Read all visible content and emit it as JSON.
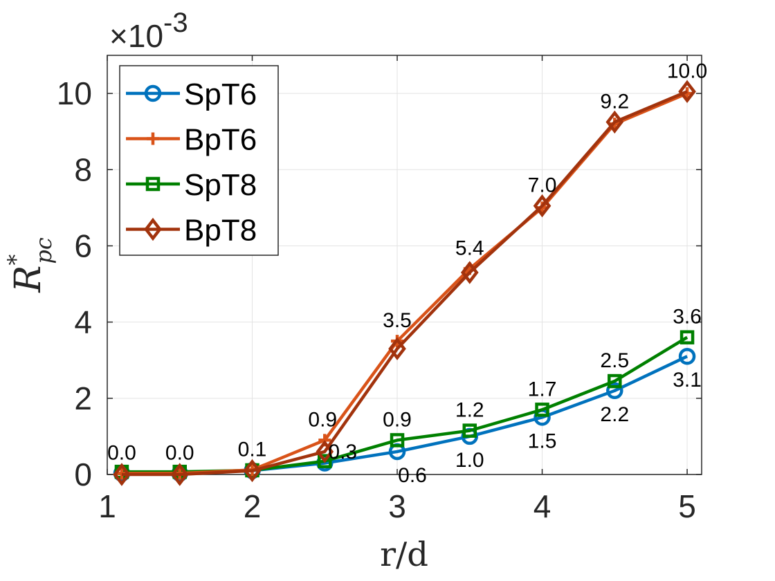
{
  "chart_data": {
    "type": "line",
    "xlabel": "r/d",
    "ylabel": "R",
    "ylabel_sup": "*",
    "ylabel_sub": "pc",
    "y_multiplier": "×10",
    "y_multiplier_exp": "-3",
    "xlim": [
      1,
      5.1
    ],
    "ylim": [
      0,
      11
    ],
    "xticks": [
      1,
      2,
      3,
      4,
      5
    ],
    "yticks": [
      0,
      2,
      4,
      6,
      8,
      10
    ],
    "grid": true,
    "legend_position": "top-left",
    "x": [
      1.1,
      1.5,
      2,
      2.5,
      3,
      3.5,
      4,
      4.5,
      5
    ],
    "series": [
      {
        "name": "SpT6",
        "color": "#0072BD",
        "marker": "circle",
        "values": [
          0.03,
          0.03,
          0.1,
          0.3,
          0.6,
          1.0,
          1.5,
          2.2,
          3.1
        ]
      },
      {
        "name": "BpT6",
        "color": "#D95319",
        "marker": "plus",
        "values": [
          0.03,
          0.03,
          0.12,
          0.9,
          3.5,
          5.4,
          7.0,
          9.2,
          10.0
        ]
      },
      {
        "name": "SpT8",
        "color": "#008000",
        "marker": "square",
        "values": [
          0.07,
          0.07,
          0.11,
          0.35,
          0.9,
          1.15,
          1.7,
          2.45,
          3.6
        ]
      },
      {
        "name": "BpT8",
        "color": "#A2330D",
        "marker": "diamond",
        "values": [
          0.0,
          0.0,
          0.1,
          0.6,
          3.3,
          5.3,
          7.05,
          9.25,
          10.05
        ]
      }
    ],
    "annotations_top": [
      "0.0",
      "0.0",
      "0.1",
      "0.9",
      "3.5",
      "5.4",
      "7.0",
      "9.2",
      "10.0"
    ],
    "annotations_upper": [
      "0.3",
      "0.9",
      "1.2",
      "1.7",
      "2.5",
      "3.6"
    ],
    "annotations_lower": [
      "0.6",
      "1.0",
      "1.5",
      "2.2",
      "3.1"
    ]
  }
}
